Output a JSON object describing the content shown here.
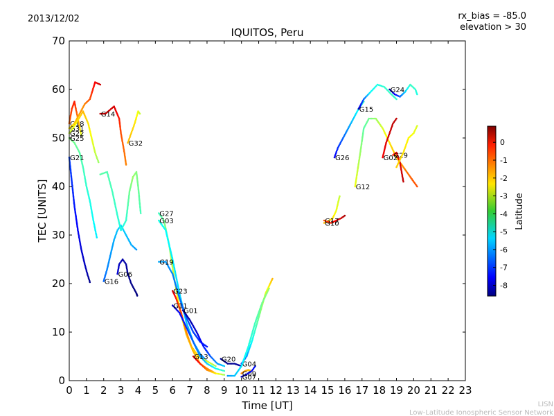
{
  "figure": {
    "date": "2013/12/02",
    "rx_bias": "rx_bias = -85.0",
    "elevation": "elevation > 30",
    "footer_line1": "LISN",
    "footer_line2": "Low-Latitude Ionospheric Sensor Network"
  },
  "chart_data": {
    "type": "scatter",
    "title": "IQUITOS, Peru",
    "xlabel": "Time [UT]",
    "ylabel": "TEC [UNITS]",
    "xlim": [
      0,
      23
    ],
    "ylim": [
      0,
      70
    ],
    "x_ticks": [
      "0",
      "1",
      "2",
      "3",
      "4",
      "5",
      "6",
      "7",
      "8",
      "9",
      "10",
      "11",
      "12",
      "13",
      "14",
      "15",
      "16",
      "17",
      "18",
      "19",
      "20",
      "21",
      "22",
      "23"
    ],
    "y_ticks": [
      "0",
      "10",
      "20",
      "30",
      "40",
      "50",
      "60",
      "70"
    ],
    "grid": false,
    "colorbar": {
      "label": "Latitude",
      "range": [
        -8.6,
        0.9
      ],
      "ticks": [
        "0",
        "-1",
        "-2",
        "-3",
        "-4",
        "-5",
        "-6",
        "-7",
        "-8"
      ],
      "colormap": "jet"
    },
    "series": [
      {
        "name": "G18",
        "points": [
          [
            0.0,
            53
          ],
          [
            0.15,
            56
          ],
          [
            0.3,
            57.5
          ],
          [
            0.5,
            54
          ],
          [
            0.7,
            50.5
          ]
        ],
        "lat": [
          -1.2,
          -0.8,
          -0.5,
          -1.5,
          -3.0
        ]
      },
      {
        "name": "G31",
        "points": [
          [
            0.0,
            52
          ],
          [
            0.3,
            53
          ],
          [
            0.6,
            55
          ],
          [
            0.9,
            57
          ],
          [
            1.2,
            58
          ],
          [
            1.5,
            61.5
          ],
          [
            1.8,
            61
          ]
        ],
        "lat": [
          -2.5,
          -2.2,
          -1.8,
          -1.5,
          -1.0,
          -0.2,
          0.2
        ]
      },
      {
        "name": "G22",
        "points": [
          [
            0.0,
            51
          ],
          [
            0.4,
            53
          ],
          [
            0.8,
            55.5
          ],
          [
            1.1,
            53
          ],
          [
            1.3,
            50
          ],
          [
            1.5,
            47
          ],
          [
            1.7,
            45
          ]
        ],
        "lat": [
          -3.2,
          -2.6,
          -2.0,
          -2.4,
          -2.8,
          -3.2,
          -3.6
        ]
      },
      {
        "name": "G25",
        "points": [
          [
            0.0,
            50
          ],
          [
            0.3,
            49
          ],
          [
            0.6,
            47
          ],
          [
            0.8,
            44
          ],
          [
            1.0,
            40
          ],
          [
            1.2,
            37
          ],
          [
            1.4,
            33
          ],
          [
            1.6,
            29.5
          ]
        ],
        "lat": [
          -3.8,
          -4.0,
          -4.2,
          -4.4,
          -4.6,
          -4.8,
          -5.0,
          -5.2
        ]
      },
      {
        "name": "G21",
        "points": [
          [
            0.0,
            46
          ],
          [
            0.15,
            41
          ],
          [
            0.3,
            36
          ],
          [
            0.5,
            31
          ],
          [
            0.7,
            27
          ],
          [
            0.9,
            24
          ],
          [
            1.05,
            22
          ],
          [
            1.2,
            20.3
          ]
        ],
        "lat": [
          -6.8,
          -7.0,
          -7.2,
          -7.5,
          -7.8,
          -8.0,
          -8.2,
          -8.5
        ]
      },
      {
        "name": "G14",
        "points": [
          [
            1.8,
            55
          ],
          [
            2.1,
            55
          ],
          [
            2.6,
            56.5
          ],
          [
            2.9,
            54
          ],
          [
            3.0,
            51
          ],
          [
            3.2,
            47
          ],
          [
            3.3,
            44.5
          ]
        ],
        "lat": [
          0.3,
          0.2,
          0.1,
          -0.5,
          -1.0,
          -1.3,
          -1.5
        ]
      },
      {
        "name": "G32",
        "points": [
          [
            3.4,
            49
          ],
          [
            3.6,
            51
          ],
          [
            3.8,
            53
          ],
          [
            4.0,
            55.5
          ],
          [
            4.1,
            55
          ]
        ],
        "lat": [
          -2.0,
          -2.2,
          -2.4,
          -2.8,
          -3.2
        ]
      },
      {
        "name": "G06",
        "points": [
          [
            2.8,
            22
          ],
          [
            2.9,
            24
          ],
          [
            3.1,
            25
          ],
          [
            3.3,
            24
          ],
          [
            3.4,
            22
          ],
          [
            3.6,
            20
          ],
          [
            3.9,
            18
          ],
          [
            3.95,
            17.5
          ]
        ],
        "lat": [
          -7.8,
          -8.0,
          -8.2,
          -8.3,
          -8.4,
          -8.5,
          -8.6,
          -8.6
        ]
      },
      {
        "name": "G16",
        "points": [
          [
            2.0,
            20.5
          ],
          [
            2.2,
            23
          ],
          [
            2.4,
            26
          ],
          [
            2.6,
            29
          ],
          [
            2.8,
            31
          ],
          [
            3.0,
            32
          ],
          [
            3.3,
            30
          ],
          [
            3.6,
            28
          ],
          [
            3.9,
            27
          ]
        ],
        "lat": [
          -6.5,
          -6.2,
          -6.0,
          -5.8,
          -5.6,
          -5.4,
          -5.6,
          -5.8,
          -6.0
        ]
      },
      {
        "name": "",
        "points": [
          [
            1.8,
            42.5
          ],
          [
            2.2,
            43
          ],
          [
            2.5,
            39
          ],
          [
            2.8,
            34
          ],
          [
            3.0,
            31
          ],
          [
            3.3,
            33
          ],
          [
            3.5,
            39
          ],
          [
            3.7,
            42
          ],
          [
            3.9,
            43
          ],
          [
            4.0,
            40
          ],
          [
            4.15,
            34.5
          ]
        ],
        "lat": [
          -4.2,
          -4.3,
          -4.4,
          -4.6,
          -4.8,
          -4.6,
          -4.0,
          -3.6,
          -3.8,
          -4.0,
          -4.4
        ]
      },
      {
        "name": "G27",
        "points": [
          [
            5.2,
            34.5
          ],
          [
            5.5,
            33
          ],
          [
            5.8,
            28
          ],
          [
            6.1,
            21
          ],
          [
            6.4,
            15
          ],
          [
            6.8,
            9.5
          ],
          [
            7.2,
            6
          ],
          [
            7.6,
            3.5
          ],
          [
            8.0,
            2.5
          ],
          [
            8.5,
            1.5
          ]
        ],
        "lat": [
          -4.5,
          -4.0,
          -3.5,
          -3.0,
          -2.6,
          -2.2,
          -2.0,
          -1.8,
          -1.6,
          -1.5
        ]
      },
      {
        "name": "G03",
        "points": [
          [
            5.2,
            33
          ],
          [
            5.6,
            31
          ],
          [
            6.0,
            25
          ],
          [
            6.4,
            18
          ],
          [
            6.8,
            12
          ],
          [
            7.2,
            8
          ],
          [
            7.6,
            5.5
          ],
          [
            8.0,
            4
          ]
        ],
        "lat": [
          -4.8,
          -5.0,
          -5.2,
          -5.4,
          -5.6,
          -5.8,
          -6.0,
          -6.2
        ]
      },
      {
        "name": "G19",
        "points": [
          [
            5.2,
            24.5
          ],
          [
            5.6,
            24.5
          ],
          [
            6.0,
            22
          ],
          [
            6.4,
            17
          ],
          [
            6.8,
            13
          ],
          [
            7.2,
            10
          ],
          [
            7.6,
            8
          ],
          [
            8.0,
            7
          ]
        ],
        "lat": [
          -5.8,
          -6.0,
          -6.2,
          -6.4,
          -6.6,
          -6.8,
          -7.0,
          -7.2
        ]
      },
      {
        "name": "G23",
        "points": [
          [
            6.0,
            18.5
          ],
          [
            6.2,
            17
          ],
          [
            6.5,
            14
          ],
          [
            6.8,
            10
          ],
          [
            7.1,
            7
          ],
          [
            7.5,
            5
          ],
          [
            8.0,
            4
          ],
          [
            8.5,
            3
          ]
        ],
        "lat": [
          0.2,
          -0.5,
          -1.0,
          -1.5,
          -2.0,
          -2.5,
          -3.0,
          -3.5
        ]
      },
      {
        "name": "G11",
        "points": [
          [
            6.0,
            15.5
          ],
          [
            6.4,
            14
          ],
          [
            6.8,
            11
          ],
          [
            7.2,
            8
          ],
          [
            7.6,
            5
          ],
          [
            8.0,
            3.5
          ],
          [
            8.5,
            2.5
          ],
          [
            9.0,
            2
          ]
        ],
        "lat": [
          -8.0,
          -7.5,
          -7.0,
          -6.5,
          -6.0,
          -5.5,
          -5.0,
          -4.5
        ]
      },
      {
        "name": "G01",
        "points": [
          [
            6.6,
            14.5
          ],
          [
            7.0,
            12.5
          ],
          [
            7.4,
            10
          ],
          [
            7.8,
            7
          ],
          [
            8.2,
            5
          ],
          [
            8.6,
            3.5
          ],
          [
            9.0,
            3
          ]
        ],
        "lat": [
          -8.4,
          -8.2,
          -7.8,
          -7.2,
          -6.6,
          -6.0,
          -5.5
        ]
      },
      {
        "name": "G13",
        "points": [
          [
            7.2,
            5
          ],
          [
            7.6,
            3.5
          ],
          [
            8.0,
            2.2
          ],
          [
            8.5,
            1.5
          ],
          [
            9.0,
            1.2
          ]
        ],
        "lat": [
          0.3,
          -0.5,
          -1.5,
          -2.5,
          -3.5
        ]
      },
      {
        "name": "G20",
        "points": [
          [
            8.8,
            4.5
          ],
          [
            9.2,
            3.5
          ],
          [
            9.6,
            3.5
          ],
          [
            10.0,
            3
          ]
        ],
        "lat": [
          -8.4,
          -8.5,
          -8.4,
          -8.2
        ]
      },
      {
        "name": "G09",
        "points": [
          [
            10.0,
            1.5
          ],
          [
            10.2,
            2
          ],
          [
            10.4,
            2.2
          ],
          [
            10.6,
            2
          ]
        ],
        "lat": [
          -1.5,
          -1.8,
          -2.0,
          -2.2
        ]
      },
      {
        "name": "G07",
        "points": [
          [
            10.0,
            0.8
          ],
          [
            10.3,
            1.3
          ],
          [
            10.6,
            2
          ],
          [
            10.8,
            3
          ]
        ],
        "lat": [
          -8.0,
          -7.8,
          -7.5,
          -7.2
        ]
      },
      {
        "name": "G04",
        "points": [
          [
            10.0,
            3.5
          ],
          [
            10.3,
            5
          ],
          [
            10.6,
            8
          ],
          [
            11.0,
            13
          ],
          [
            11.4,
            18
          ],
          [
            11.8,
            21
          ]
        ],
        "lat": [
          -7.0,
          -6.0,
          -5.0,
          -4.0,
          -3.0,
          -2.0
        ]
      },
      {
        "name": "",
        "points": [
          [
            9.2,
            1
          ],
          [
            9.6,
            1
          ],
          [
            10.0,
            3
          ],
          [
            10.4,
            7
          ],
          [
            10.8,
            12
          ],
          [
            11.2,
            16
          ],
          [
            11.6,
            19
          ]
        ],
        "lat": [
          -6.0,
          -5.6,
          -5.2,
          -4.8,
          -4.4,
          -4.0,
          -3.6
        ]
      },
      {
        "name": "G10",
        "points": [
          [
            14.8,
            32.5
          ],
          [
            15.1,
            33
          ],
          [
            15.3,
            33.5
          ],
          [
            15.5,
            35
          ],
          [
            15.7,
            38
          ]
        ],
        "lat": [
          -2.0,
          -2.2,
          -2.4,
          -2.8,
          -3.2
        ]
      },
      {
        "name": "G17",
        "points": [
          [
            14.8,
            33
          ],
          [
            15.2,
            32.5
          ],
          [
            15.5,
            33
          ],
          [
            15.8,
            33.5
          ],
          [
            16.0,
            34
          ]
        ],
        "lat": [
          -1.0,
          -0.6,
          -0.2,
          0.2,
          0.5
        ]
      },
      {
        "name": "G26",
        "points": [
          [
            15.4,
            46
          ],
          [
            15.6,
            48
          ],
          [
            15.9,
            50
          ],
          [
            16.2,
            52
          ],
          [
            16.5,
            54
          ],
          [
            16.8,
            56
          ],
          [
            17.1,
            57.5
          ]
        ],
        "lat": [
          -7.5,
          -7.0,
          -6.5,
          -6.0,
          -5.5,
          -5.0,
          -4.5
        ]
      },
      {
        "name": "G15",
        "points": [
          [
            16.8,
            56
          ],
          [
            17.1,
            58
          ],
          [
            17.5,
            59.5
          ],
          [
            17.9,
            61
          ],
          [
            18.3,
            60.5
          ],
          [
            18.7,
            59
          ],
          [
            19.0,
            58
          ]
        ],
        "lat": [
          -8.0,
          -6.5,
          -5.0,
          -4.8,
          -4.6,
          -4.5,
          -4.6
        ]
      },
      {
        "name": "G12",
        "points": [
          [
            16.6,
            40
          ],
          [
            16.9,
            47
          ],
          [
            17.1,
            52
          ],
          [
            17.4,
            54
          ],
          [
            17.8,
            54
          ],
          [
            18.2,
            52
          ],
          [
            18.6,
            49
          ],
          [
            19.0,
            46
          ],
          [
            19.4,
            44
          ],
          [
            19.8,
            42
          ],
          [
            20.2,
            40
          ]
        ],
        "lat": [
          -2.8,
          -3.6,
          -4.2,
          -4.0,
          -3.6,
          -3.0,
          -2.4,
          -2.0,
          -1.6,
          -1.2,
          -1.0
        ]
      },
      {
        "name": "G24",
        "points": [
          [
            18.6,
            60
          ],
          [
            18.9,
            59
          ],
          [
            19.2,
            58.5
          ],
          [
            19.5,
            59.5
          ],
          [
            19.8,
            61
          ],
          [
            20.1,
            60
          ],
          [
            20.2,
            59
          ]
        ],
        "lat": [
          -8.3,
          -7.5,
          -6.5,
          -5.5,
          -4.5,
          -4.6,
          -4.8
        ]
      },
      {
        "name": "G02",
        "points": [
          [
            18.2,
            46
          ],
          [
            18.4,
            49
          ],
          [
            18.6,
            51
          ],
          [
            18.8,
            53
          ],
          [
            19.0,
            54
          ]
        ],
        "lat": [
          -0.2,
          0.0,
          0.2,
          0.3,
          0.3
        ]
      },
      {
        "name": "G29",
        "points": [
          [
            18.8,
            46.5
          ],
          [
            19.0,
            47
          ],
          [
            19.2,
            45
          ],
          [
            19.4,
            41
          ]
        ],
        "lat": [
          -0.6,
          -0.3,
          0.0,
          0.3
        ]
      },
      {
        "name": "",
        "points": [
          [
            19.0,
            44
          ],
          [
            19.4,
            47
          ],
          [
            19.7,
            50
          ],
          [
            20.0,
            51
          ],
          [
            20.2,
            52.5
          ]
        ],
        "lat": [
          -2.2,
          -2.4,
          -2.6,
          -2.8,
          -3.0
        ]
      }
    ]
  }
}
